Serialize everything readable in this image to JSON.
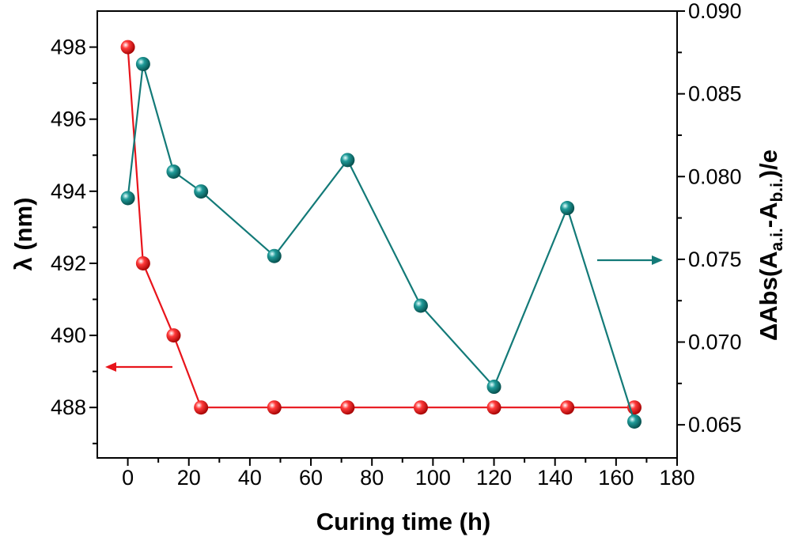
{
  "chart_data": {
    "type": "line",
    "xlabel": "Curing time (h)",
    "ylabel_left": "λ (nm)",
    "ylabel_right_parts": {
      "prefix": "ΔAbs(A",
      "sub1": "a.i.",
      "mid": "-A",
      "sub2": "b.i.",
      "suffix": ")/e"
    },
    "xlim": [
      -10,
      180
    ],
    "ylim_left": [
      486.6,
      499.0
    ],
    "ylim_right": [
      0.063,
      0.09
    ],
    "x_ticks": [
      0,
      20,
      40,
      60,
      80,
      100,
      120,
      140,
      160,
      180
    ],
    "y_left_ticks": [
      488,
      490,
      492,
      494,
      496,
      498
    ],
    "y_right_ticks": [
      "0.065",
      "0.070",
      "0.075",
      "0.080",
      "0.085",
      "0.090"
    ],
    "series": [
      {
        "axis": "left",
        "color": "#e8141b",
        "x": [
          0,
          5,
          15,
          24,
          48,
          72,
          96,
          120,
          144,
          166
        ],
        "y": [
          498,
          492,
          490,
          488,
          488,
          488,
          488,
          488,
          488,
          488
        ]
      },
      {
        "axis": "right",
        "color": "#137a78",
        "x": [
          0,
          5,
          15,
          24,
          48,
          72,
          96,
          120,
          144,
          166
        ],
        "y": [
          0.0787,
          0.0868,
          0.0803,
          0.0791,
          0.0752,
          0.081,
          0.0722,
          0.0673,
          0.0781,
          0.0652
        ]
      }
    ],
    "annotations": [
      {
        "type": "arrow",
        "direction": "left",
        "points_to_axis": "left",
        "color": "#e8141b"
      },
      {
        "type": "arrow",
        "direction": "right",
        "points_to_axis": "right",
        "color": "#137a78"
      }
    ]
  }
}
